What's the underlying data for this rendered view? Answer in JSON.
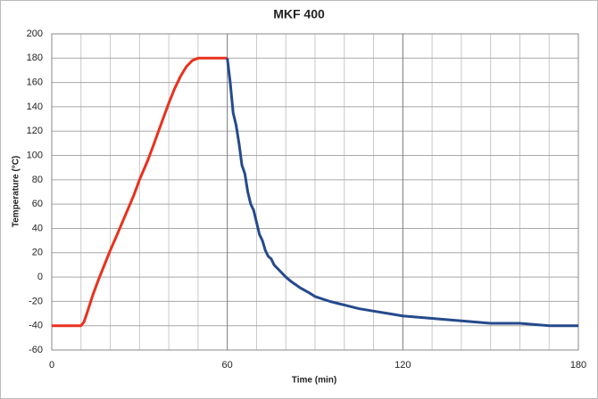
{
  "chart_data": {
    "type": "line",
    "title": "MKF 400",
    "x_label": "Time (min)",
    "y_label": "Temperature (°C)",
    "xlim": [
      0,
      180
    ],
    "xticks": [
      0,
      60,
      120,
      180
    ],
    "ylim": [
      -60,
      200
    ],
    "yticks": [
      -60,
      -40,
      -20,
      0,
      20,
      40,
      60,
      80,
      100,
      120,
      140,
      160,
      180,
      200
    ],
    "grid": true,
    "series": [
      {
        "color": "#e8321e",
        "x": [
          0,
          10,
          11,
          12,
          14,
          16,
          18,
          20,
          22,
          25,
          28,
          30,
          33,
          35,
          38,
          40,
          42,
          44,
          46,
          48,
          50,
          60
        ],
        "values": [
          -40,
          -40,
          -37,
          -30,
          -15,
          -2,
          10,
          22,
          33,
          50,
          67,
          80,
          97,
          110,
          130,
          143,
          155,
          165,
          173,
          178,
          180,
          180
        ]
      },
      {
        "color": "#254a8c",
        "x": [
          60,
          61,
          62,
          63,
          64,
          65,
          66,
          67,
          68,
          69,
          70,
          71,
          72,
          73,
          74,
          75,
          76,
          78,
          80,
          82,
          85,
          88,
          90,
          95,
          100,
          105,
          110,
          115,
          120,
          125,
          130,
          135,
          140,
          145,
          150,
          160,
          165,
          170,
          180
        ],
        "values": [
          180,
          160,
          135,
          125,
          110,
          92,
          85,
          70,
          60,
          55,
          45,
          35,
          30,
          22,
          17,
          15,
          10,
          5,
          0,
          -4,
          -9,
          -13,
          -16,
          -20,
          -23,
          -26,
          -28,
          -30,
          -32,
          -33,
          -34,
          -35,
          -36,
          -37,
          -38,
          -38,
          -39,
          -40,
          -40
        ]
      }
    ]
  }
}
